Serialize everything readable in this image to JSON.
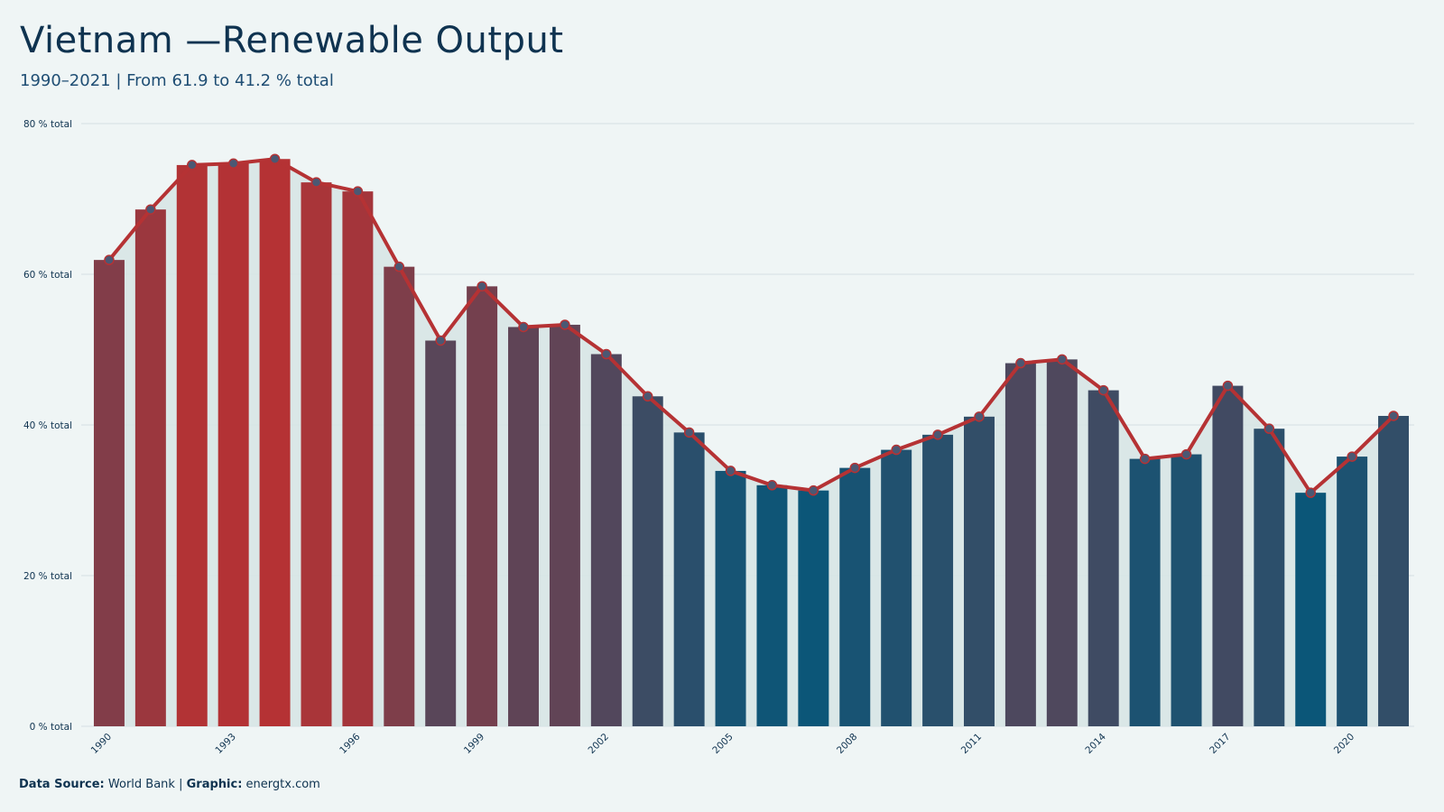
{
  "header": {
    "title": "Vietnam —Renewable Output",
    "subtitle": "1990–2021 | From 61.9 to 41.2 % total"
  },
  "footer": {
    "source_label": "Data Source:",
    "source_value": "World Bank",
    "separator": "|",
    "graphic_label": "Graphic:",
    "graphic_value": "energtx.com"
  },
  "colors": {
    "high": "#b53234",
    "low": "#0b5678",
    "line": "#b53234",
    "point_fill": "#4b5873",
    "grid": "#d4e0e2",
    "bar_background": "#d7e5e6",
    "text": "#0f3350"
  },
  "chart_data": {
    "type": "bar",
    "title": "Vietnam —Renewable Output",
    "subtitle": "1990–2021 | From 61.9 to 41.2 % total",
    "x": [
      1990,
      1991,
      1992,
      1993,
      1994,
      1995,
      1996,
      1997,
      1998,
      1999,
      2000,
      2001,
      2002,
      2003,
      2004,
      2005,
      2006,
      2007,
      2008,
      2009,
      2010,
      2011,
      2012,
      2013,
      2014,
      2015,
      2016,
      2017,
      2018,
      2019,
      2020,
      2021
    ],
    "values": [
      61.9,
      68.6,
      74.5,
      74.7,
      75.3,
      72.2,
      71.0,
      61.0,
      51.2,
      58.4,
      53.0,
      53.3,
      49.4,
      43.8,
      39.0,
      33.9,
      32.0,
      31.3,
      34.3,
      36.7,
      38.7,
      41.1,
      48.2,
      48.7,
      44.6,
      35.5,
      36.1,
      45.2,
      39.5,
      31.0,
      35.8,
      41.2
    ],
    "series": [
      {
        "type": "bar"
      },
      {
        "type": "line",
        "markers": true
      }
    ],
    "x_tick_labels": [
      "1990",
      "1993",
      "1996",
      "1999",
      "2002",
      "2005",
      "2008",
      "2011",
      "2014",
      "2017",
      "2020"
    ],
    "y_ticks": [
      0,
      20,
      40,
      60,
      80
    ],
    "y_tick_labels": [
      "0 % total",
      "20 % total",
      "40 % total",
      "60 % total",
      "80 % total"
    ],
    "ylim": [
      0,
      80
    ],
    "grid": "horizontal",
    "legend": "none",
    "bar_color_scale": "value-based, low blue to high red"
  }
}
